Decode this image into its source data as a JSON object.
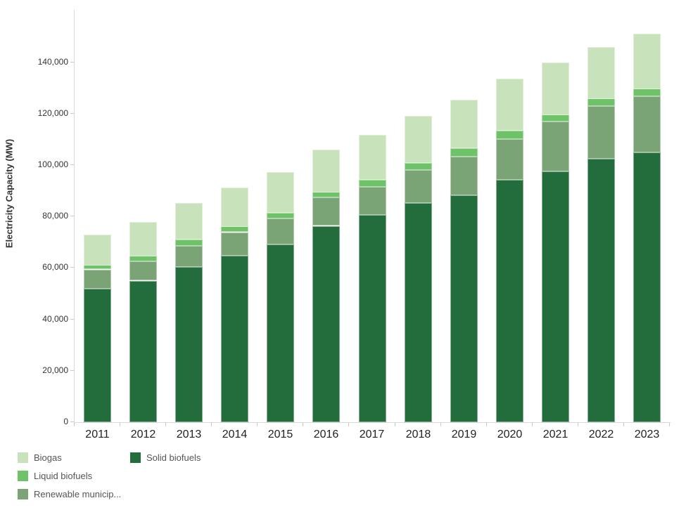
{
  "chart": {
    "y_axis_title": "Electricity Capacity (MW)",
    "y_ticks": [
      {
        "label": "0",
        "value": 0
      },
      {
        "label": "20,000",
        "value": 20000
      },
      {
        "label": "40,000",
        "value": 40000
      },
      {
        "label": "60,000",
        "value": 60000
      },
      {
        "label": "80,000",
        "value": 80000
      },
      {
        "label": "100,000",
        "value": 100000
      },
      {
        "label": "120,000",
        "value": 120000
      },
      {
        "label": "140,000",
        "value": 140000
      }
    ]
  },
  "chart_data": {
    "type": "bar",
    "stacked": true,
    "title": "",
    "xlabel": "",
    "ylabel": "Electricity Capacity (MW)",
    "ylim": [
      0,
      155000
    ],
    "grid": false,
    "legend_position": "bottom-left",
    "categories": [
      "2011",
      "2012",
      "2013",
      "2014",
      "2015",
      "2016",
      "2017",
      "2018",
      "2019",
      "2020",
      "2021",
      "2022",
      "2023"
    ],
    "series": [
      {
        "name": "Solid biofuels",
        "color": "#236d3c",
        "values": [
          52000,
          55000,
          60400,
          64800,
          69000,
          76300,
          80600,
          85200,
          88300,
          94200,
          97500,
          102400,
          104800
        ]
      },
      {
        "name": "Renewable municip...",
        "color": "#7aa475",
        "values": [
          7400,
          7500,
          8300,
          9000,
          10200,
          11000,
          10900,
          12900,
          15000,
          15800,
          19400,
          20500,
          21900
        ]
      },
      {
        "name": "Liquid biofuels",
        "color": "#6ec368",
        "values": [
          1700,
          2200,
          2400,
          2300,
          2200,
          2200,
          2700,
          2700,
          3300,
          3300,
          2700,
          3000,
          3000
        ]
      },
      {
        "name": "Biogas",
        "color": "#c8e2bb",
        "values": [
          11900,
          13300,
          14200,
          15200,
          15800,
          16600,
          17600,
          18300,
          18800,
          20300,
          20400,
          20100,
          21500
        ]
      }
    ]
  },
  "legend": {
    "columns": [
      [
        {
          "label": "Biogas",
          "color": "#c8e2bb"
        },
        {
          "label": "Liquid biofuels",
          "color": "#6ec368"
        },
        {
          "label": "Renewable municip...",
          "color": "#7aa475"
        }
      ],
      [
        {
          "label": "Solid biofuels",
          "color": "#236d3c"
        }
      ]
    ]
  }
}
